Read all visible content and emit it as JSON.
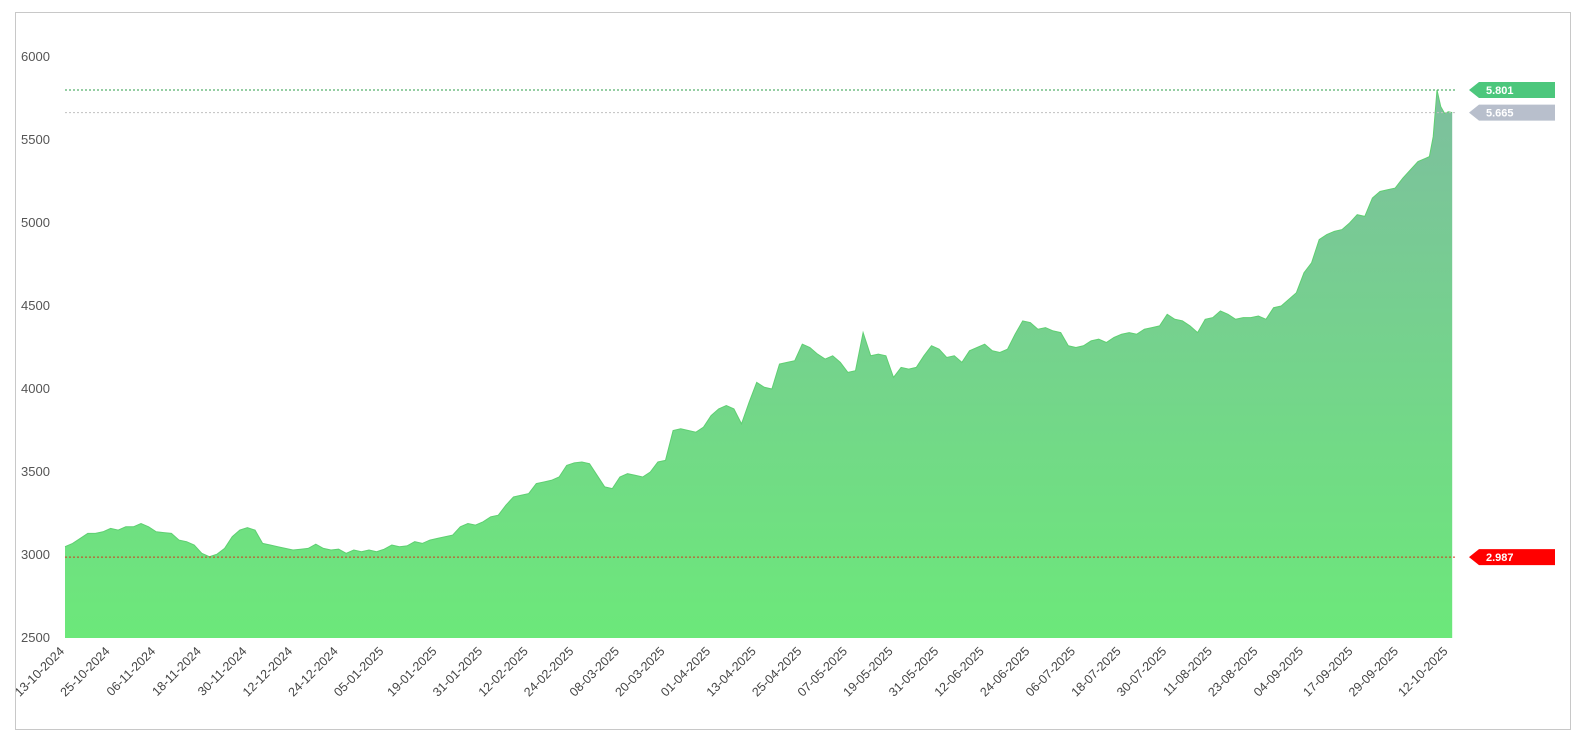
{
  "chart_data": {
    "type": "area",
    "title": "",
    "xlabel": "",
    "ylabel": "",
    "ylim": [
      2500,
      6000
    ],
    "yticks": [
      "2500",
      "3000",
      "3500",
      "4000",
      "4500",
      "5000",
      "5500",
      "6000"
    ],
    "xlim": [
      "2024-10-13",
      "2025-10-14"
    ],
    "xtick_labels": [
      "13-10-2024",
      "25-10-2024",
      "06-11-2024",
      "18-11-2024",
      "30-11-2024",
      "12-12-2024",
      "24-12-2024",
      "05-01-2025",
      "19-01-2025",
      "31-01-2025",
      "12-02-2025",
      "24-02-2025",
      "08-03-2025",
      "20-03-2025",
      "01-04-2025",
      "13-04-2025",
      "25-04-2025",
      "07-05-2025",
      "19-05-2025",
      "31-05-2025",
      "12-06-2025",
      "24-06-2025",
      "06-07-2025",
      "18-07-2025",
      "30-07-2025",
      "11-08-2025",
      "23-08-2025",
      "04-09-2025",
      "17-09-2025",
      "29-09-2025",
      "12-10-2025"
    ],
    "grid": false,
    "colors": {
      "area_top": "#7dbf9e",
      "area_bottom": "#6ce87a",
      "line": "#5fcf72",
      "max": "#4cc77c",
      "last": "#b8bfcc",
      "min": "#ff0000"
    },
    "reference_lines": [
      {
        "name": "max",
        "value": 5801,
        "label": "5.801"
      },
      {
        "name": "last",
        "value": 5665,
        "label": "5.665"
      },
      {
        "name": "min",
        "value": 2987,
        "label": "2.987"
      }
    ],
    "series": [
      {
        "points": [
          [
            "2024-10-13",
            3050
          ],
          [
            "2024-10-15",
            3070
          ],
          [
            "2024-10-17",
            3100
          ],
          [
            "2024-10-19",
            3130
          ],
          [
            "2024-10-21",
            3130
          ],
          [
            "2024-10-23",
            3140
          ],
          [
            "2024-10-25",
            3160
          ],
          [
            "2024-10-27",
            3150
          ],
          [
            "2024-10-29",
            3170
          ],
          [
            "2024-10-31",
            3170
          ],
          [
            "2024-11-02",
            3190
          ],
          [
            "2024-11-04",
            3170
          ],
          [
            "2024-11-06",
            3140
          ],
          [
            "2024-11-08",
            3135
          ],
          [
            "2024-11-10",
            3130
          ],
          [
            "2024-11-12",
            3090
          ],
          [
            "2024-11-14",
            3080
          ],
          [
            "2024-11-16",
            3060
          ],
          [
            "2024-11-18",
            3010
          ],
          [
            "2024-11-20",
            2990
          ],
          [
            "2024-11-22",
            3005
          ],
          [
            "2024-11-24",
            3040
          ],
          [
            "2024-11-26",
            3110
          ],
          [
            "2024-11-28",
            3150
          ],
          [
            "2024-11-30",
            3165
          ],
          [
            "2024-12-02",
            3150
          ],
          [
            "2024-12-04",
            3070
          ],
          [
            "2024-12-06",
            3060
          ],
          [
            "2024-12-08",
            3050
          ],
          [
            "2024-12-10",
            3040
          ],
          [
            "2024-12-12",
            3030
          ],
          [
            "2024-12-14",
            3035
          ],
          [
            "2024-12-16",
            3040
          ],
          [
            "2024-12-18",
            3065
          ],
          [
            "2024-12-20",
            3040
          ],
          [
            "2024-12-22",
            3030
          ],
          [
            "2024-12-24",
            3035
          ],
          [
            "2024-12-26",
            3010
          ],
          [
            "2024-12-28",
            3030
          ],
          [
            "2024-12-30",
            3020
          ],
          [
            "2025-01-01",
            3030
          ],
          [
            "2025-01-03",
            3020
          ],
          [
            "2025-01-05",
            3035
          ],
          [
            "2025-01-07",
            3060
          ],
          [
            "2025-01-09",
            3050
          ],
          [
            "2025-01-11",
            3055
          ],
          [
            "2025-01-13",
            3080
          ],
          [
            "2025-01-15",
            3070
          ],
          [
            "2025-01-17",
            3090
          ],
          [
            "2025-01-19",
            3100
          ],
          [
            "2025-01-21",
            3110
          ],
          [
            "2025-01-23",
            3120
          ],
          [
            "2025-01-25",
            3170
          ],
          [
            "2025-01-27",
            3190
          ],
          [
            "2025-01-29",
            3180
          ],
          [
            "2025-01-31",
            3200
          ],
          [
            "2025-02-02",
            3230
          ],
          [
            "2025-02-04",
            3240
          ],
          [
            "2025-02-06",
            3300
          ],
          [
            "2025-02-08",
            3350
          ],
          [
            "2025-02-10",
            3360
          ],
          [
            "2025-02-12",
            3370
          ],
          [
            "2025-02-14",
            3430
          ],
          [
            "2025-02-16",
            3440
          ],
          [
            "2025-02-18",
            3450
          ],
          [
            "2025-02-20",
            3470
          ],
          [
            "2025-02-22",
            3540
          ],
          [
            "2025-02-24",
            3555
          ],
          [
            "2025-02-26",
            3560
          ],
          [
            "2025-02-28",
            3550
          ],
          [
            "2025-03-02",
            3480
          ],
          [
            "2025-03-04",
            3410
          ],
          [
            "2025-03-06",
            3400
          ],
          [
            "2025-03-08",
            3470
          ],
          [
            "2025-03-10",
            3490
          ],
          [
            "2025-03-12",
            3480
          ],
          [
            "2025-03-14",
            3470
          ],
          [
            "2025-03-16",
            3500
          ],
          [
            "2025-03-18",
            3560
          ],
          [
            "2025-03-20",
            3570
          ],
          [
            "2025-03-22",
            3750
          ],
          [
            "2025-03-24",
            3760
          ],
          [
            "2025-03-26",
            3750
          ],
          [
            "2025-03-28",
            3740
          ],
          [
            "2025-03-30",
            3770
          ],
          [
            "2025-04-01",
            3840
          ],
          [
            "2025-04-03",
            3880
          ],
          [
            "2025-04-05",
            3900
          ],
          [
            "2025-04-07",
            3880
          ],
          [
            "2025-04-09",
            3790
          ],
          [
            "2025-04-11",
            3920
          ],
          [
            "2025-04-13",
            4040
          ],
          [
            "2025-04-15",
            4010
          ],
          [
            "2025-04-17",
            4000
          ],
          [
            "2025-04-19",
            4150
          ],
          [
            "2025-04-21",
            4160
          ],
          [
            "2025-04-23",
            4170
          ],
          [
            "2025-04-25",
            4270
          ],
          [
            "2025-04-27",
            4250
          ],
          [
            "2025-04-29",
            4210
          ],
          [
            "2025-05-01",
            4180
          ],
          [
            "2025-05-03",
            4200
          ],
          [
            "2025-05-05",
            4160
          ],
          [
            "2025-05-07",
            4100
          ],
          [
            "2025-05-09",
            4110
          ],
          [
            "2025-05-11",
            4340
          ],
          [
            "2025-05-13",
            4200
          ],
          [
            "2025-05-15",
            4210
          ],
          [
            "2025-05-17",
            4200
          ],
          [
            "2025-05-19",
            4070
          ],
          [
            "2025-05-21",
            4130
          ],
          [
            "2025-05-23",
            4120
          ],
          [
            "2025-05-25",
            4130
          ],
          [
            "2025-05-27",
            4200
          ],
          [
            "2025-05-29",
            4260
          ],
          [
            "2025-05-31",
            4240
          ],
          [
            "2025-06-02",
            4190
          ],
          [
            "2025-06-04",
            4200
          ],
          [
            "2025-06-06",
            4160
          ],
          [
            "2025-06-08",
            4230
          ],
          [
            "2025-06-10",
            4250
          ],
          [
            "2025-06-12",
            4270
          ],
          [
            "2025-06-14",
            4230
          ],
          [
            "2025-06-16",
            4220
          ],
          [
            "2025-06-18",
            4240
          ],
          [
            "2025-06-20",
            4330
          ],
          [
            "2025-06-22",
            4410
          ],
          [
            "2025-06-24",
            4400
          ],
          [
            "2025-06-26",
            4360
          ],
          [
            "2025-06-28",
            4370
          ],
          [
            "2025-06-30",
            4350
          ],
          [
            "2025-07-02",
            4340
          ],
          [
            "2025-07-04",
            4260
          ],
          [
            "2025-07-06",
            4250
          ],
          [
            "2025-07-08",
            4260
          ],
          [
            "2025-07-10",
            4290
          ],
          [
            "2025-07-12",
            4300
          ],
          [
            "2025-07-14",
            4280
          ],
          [
            "2025-07-16",
            4310
          ],
          [
            "2025-07-18",
            4330
          ],
          [
            "2025-07-20",
            4340
          ],
          [
            "2025-07-22",
            4330
          ],
          [
            "2025-07-24",
            4360
          ],
          [
            "2025-07-26",
            4370
          ],
          [
            "2025-07-28",
            4380
          ],
          [
            "2025-07-30",
            4450
          ],
          [
            "2025-08-01",
            4420
          ],
          [
            "2025-08-03",
            4410
          ],
          [
            "2025-08-05",
            4380
          ],
          [
            "2025-08-07",
            4340
          ],
          [
            "2025-08-09",
            4420
          ],
          [
            "2025-08-11",
            4430
          ],
          [
            "2025-08-13",
            4470
          ],
          [
            "2025-08-15",
            4450
          ],
          [
            "2025-08-17",
            4420
          ],
          [
            "2025-08-19",
            4430
          ],
          [
            "2025-08-21",
            4430
          ],
          [
            "2025-08-23",
            4440
          ],
          [
            "2025-08-25",
            4420
          ],
          [
            "2025-08-27",
            4490
          ],
          [
            "2025-08-29",
            4500
          ],
          [
            "2025-08-31",
            4540
          ],
          [
            "2025-09-02",
            4580
          ],
          [
            "2025-09-04",
            4700
          ],
          [
            "2025-09-06",
            4760
          ],
          [
            "2025-09-08",
            4900
          ],
          [
            "2025-09-10",
            4930
          ],
          [
            "2025-09-12",
            4950
          ],
          [
            "2025-09-14",
            4960
          ],
          [
            "2025-09-16",
            5000
          ],
          [
            "2025-09-18",
            5050
          ],
          [
            "2025-09-20",
            5040
          ],
          [
            "2025-09-22",
            5150
          ],
          [
            "2025-09-24",
            5190
          ],
          [
            "2025-09-26",
            5200
          ],
          [
            "2025-09-28",
            5210
          ],
          [
            "2025-09-30",
            5270
          ],
          [
            "2025-10-02",
            5320
          ],
          [
            "2025-10-04",
            5370
          ],
          [
            "2025-10-06",
            5390
          ],
          [
            "2025-10-07",
            5400
          ],
          [
            "2025-10-08",
            5520
          ],
          [
            "2025-10-09",
            5801
          ],
          [
            "2025-10-10",
            5700
          ],
          [
            "2025-10-11",
            5660
          ],
          [
            "2025-10-12",
            5670
          ],
          [
            "2025-10-13",
            5665
          ]
        ]
      }
    ]
  }
}
